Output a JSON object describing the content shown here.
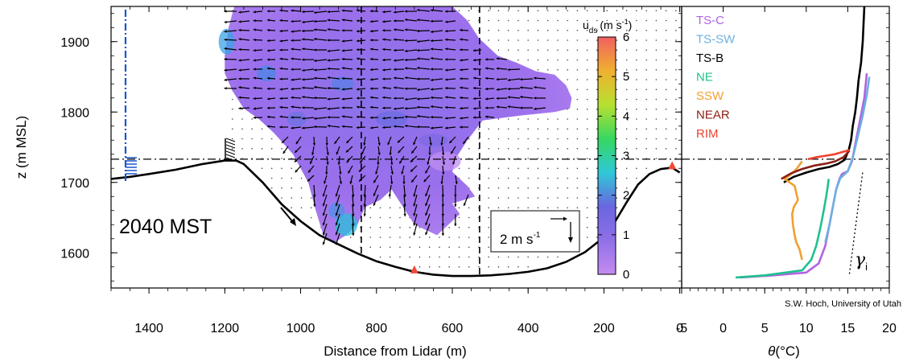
{
  "chart_data": [
    {
      "type": "contour-vector",
      "xlabel": "Distance from Lidar (m)",
      "ylabel": "z (m MSL)",
      "xlim": [
        1500,
        -5
      ],
      "ylim": [
        1550,
        1950
      ],
      "xticks": [
        1400,
        1200,
        1000,
        800,
        600,
        400,
        200,
        0
      ],
      "yticks": [
        1600,
        1700,
        1800,
        1900
      ],
      "time_label": "2040 MST",
      "colorbar": {
        "label_main": "u",
        "label_sub": "ds",
        "label_unit": "(m s",
        "label_exp": "-1",
        "label_close": ")",
        "min": 0,
        "max": 6,
        "ticks": [
          "0",
          "1",
          "2",
          "3",
          "4",
          "5",
          "6"
        ],
        "colors": [
          "#c58cf0",
          "#8f70e8",
          "#6a66e0",
          "#2fc8d8",
          "#36d860",
          "#b8e030",
          "#f0b030",
          "#f06060"
        ]
      },
      "reference_vector": {
        "label": "2 m s",
        "exp": "-1"
      },
      "reference_line_z": 1733,
      "vertical_lines_x": [
        840,
        528
      ],
      "markers_x": [
        700,
        20
      ],
      "terrain": {
        "x": [
          1500,
          1450,
          1400,
          1330,
          1260,
          1200,
          1170,
          1150,
          1100,
          1050,
          1000,
          950,
          900,
          850,
          800,
          750,
          700,
          650,
          600,
          550,
          500,
          450,
          400,
          350,
          300,
          250,
          200,
          170,
          140,
          110,
          80,
          50,
          20,
          0
        ],
        "z": [
          1705,
          1708,
          1712,
          1718,
          1726,
          1731,
          1731,
          1726,
          1700,
          1669,
          1645,
          1625,
          1612,
          1599,
          1588,
          1580,
          1573,
          1569,
          1567,
          1567,
          1568,
          1570,
          1573,
          1578,
          1587,
          1601,
          1622,
          1645,
          1672,
          1697,
          1712,
          1719,
          1721,
          1714
        ]
      },
      "wind_data_region": {
        "top_x": [
          1185,
          1100,
          1000,
          850,
          700,
          600
        ],
        "top_z": [
          1950,
          1950,
          1950,
          1950,
          1950,
          1950
        ]
      }
    },
    {
      "type": "line",
      "xlabel_main": "θ",
      "xlabel_unit": "(°C)",
      "xlim": [
        -5,
        20
      ],
      "xticks": [
        "-5",
        "0",
        "5",
        "10",
        "15",
        "20"
      ],
      "ylim": [
        1550,
        1950
      ],
      "annotation": {
        "symbol": "γ",
        "sub": "i"
      },
      "credit": "S.W. Hoch, University of Utah",
      "series": [
        {
          "name": "TS-C",
          "color": "#b163e0",
          "x": [
            2.0,
            6.0,
            10.0,
            11.5,
            12.3,
            12.8,
            13.2,
            13.6,
            14.0,
            14.3,
            15.0,
            15.5,
            16.0,
            16.5,
            17.0,
            17.3
          ],
          "z": [
            1565,
            1568,
            1572,
            1585,
            1610,
            1640,
            1665,
            1690,
            1705,
            1712,
            1716,
            1730,
            1760,
            1790,
            1820,
            1855
          ]
        },
        {
          "name": "TS-SW",
          "color": "#6cb0e0",
          "x": [
            12.3,
            12.8,
            13.2,
            13.6,
            14.1,
            15.0,
            15.6,
            16.2,
            16.8,
            17.3,
            17.6
          ],
          "z": [
            1615,
            1640,
            1665,
            1690,
            1706,
            1716,
            1735,
            1765,
            1795,
            1825,
            1850
          ]
        },
        {
          "name": "TS-B",
          "color": "#000000",
          "x": [
            7.3,
            8.5,
            10.0,
            11.5,
            12.8,
            13.8,
            14.6,
            15.1,
            15.4,
            15.6,
            15.9,
            16.1,
            16.3,
            16.6,
            16.8,
            16.9,
            17.0
          ],
          "z": [
            1700,
            1708,
            1714,
            1719,
            1722,
            1726,
            1732,
            1745,
            1760,
            1780,
            1800,
            1820,
            1845,
            1870,
            1900,
            1925,
            1950
          ]
        },
        {
          "name": "NE",
          "color": "#20c090",
          "x": [
            1.5,
            5.0,
            9.5,
            10.6,
            11.2,
            11.7,
            12.1,
            12.4,
            12.6,
            12.7
          ],
          "z": [
            1565,
            1568,
            1575,
            1590,
            1610,
            1635,
            1660,
            1680,
            1695,
            1705
          ]
        },
        {
          "name": "SSW",
          "color": "#f0a030",
          "x": [
            9.5,
            9.2,
            8.8,
            8.6,
            8.4,
            8.3,
            8.5,
            9.0,
            8.8,
            8.6,
            8.0,
            7.4,
            8.2,
            8.9,
            9.5
          ],
          "z": [
            1590,
            1605,
            1615,
            1625,
            1640,
            1655,
            1665,
            1675,
            1685,
            1695,
            1700,
            1705,
            1712,
            1720,
            1730
          ]
        },
        {
          "name": "NEAR",
          "color": "#8a2015",
          "x": [
            7.0,
            8.2,
            9.5,
            11.0,
            12.5,
            13.5,
            14.5,
            15.2
          ],
          "z": [
            1705,
            1713,
            1719,
            1724,
            1727,
            1730,
            1736,
            1745
          ]
        },
        {
          "name": "RIM",
          "color": "#f04030",
          "x": [
            10.2,
            11.3,
            12.4,
            13.4,
            14.3,
            15.2
          ],
          "z": [
            1733,
            1736,
            1738,
            1740,
            1743,
            1746
          ]
        }
      ]
    }
  ]
}
